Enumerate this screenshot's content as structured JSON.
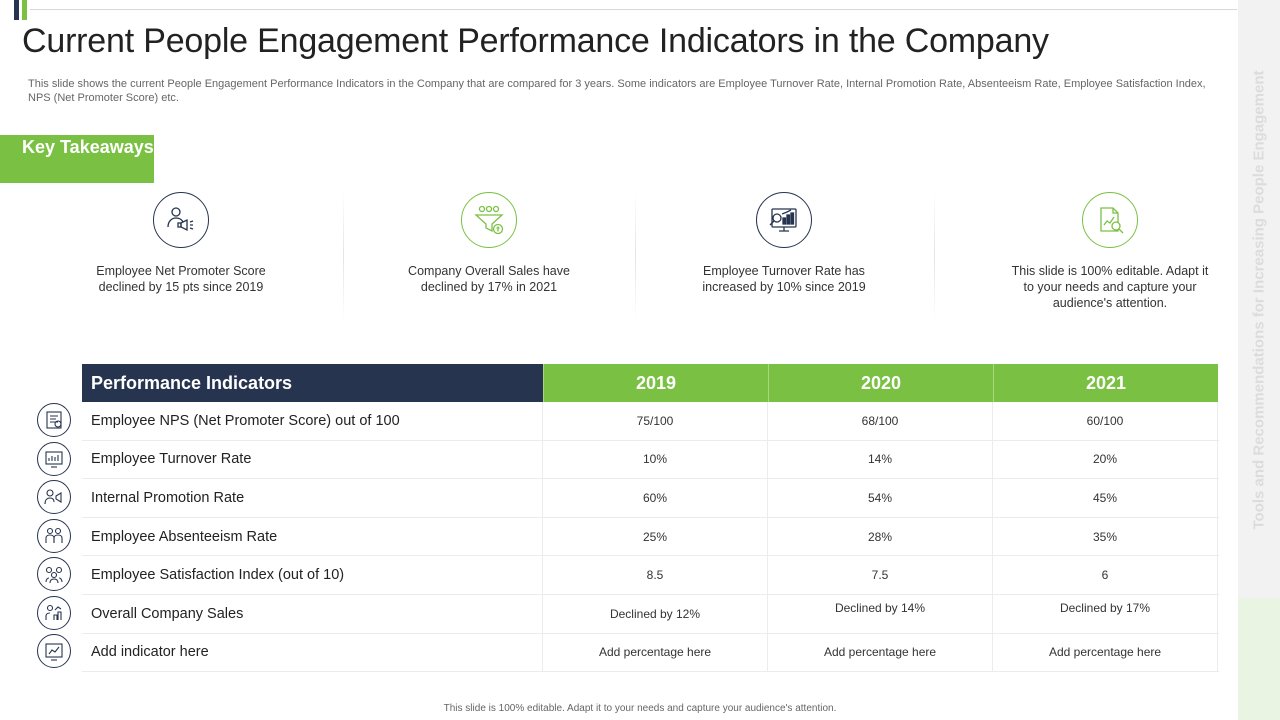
{
  "title": "Current People Engagement Performance Indicators in the Company",
  "subtitle": "This slide shows the current People Engagement Performance Indicators in the Company that are compared for 3 years. Some indicators are Employee Turnover Rate, Internal Promotion Rate, Absenteeism Rate, Employee Satisfaction Index, NPS (Net Promoter Score) etc.",
  "key_takeaways_label": "Key Takeaways",
  "side_label": "Tools and Recommendations for Increasing People Engagement",
  "takeaways": [
    {
      "icon": "user-megaphone-icon",
      "text": "Employee Net Promoter Score declined by 15 pts since 2019"
    },
    {
      "icon": "funnel-money-icon",
      "text": "Company Overall Sales have declined by 17% in 2021"
    },
    {
      "icon": "chart-magnifier-icon",
      "text": "Employee Turnover Rate has increased by 10% since 2019"
    },
    {
      "icon": "document-search-icon",
      "text": "This slide is 100% editable. Adapt it to your needs and capture your audience's attention."
    }
  ],
  "table": {
    "header": [
      "Performance Indicators",
      "2019",
      "2020",
      "2021"
    ],
    "rows": [
      {
        "icon": "nps-icon",
        "name": "Employee NPS (Net Promoter Score) out of 100",
        "values": [
          "75/100",
          "68/100",
          "60/100"
        ]
      },
      {
        "icon": "turnover-icon",
        "name": "Employee Turnover Rate",
        "values": [
          "10%",
          "14%",
          "20%"
        ]
      },
      {
        "icon": "promotion-icon",
        "name": "Internal Promotion Rate",
        "values": [
          "60%",
          "54%",
          "45%"
        ]
      },
      {
        "icon": "absenteeism-icon",
        "name": "Employee Absenteeism Rate",
        "values": [
          "25%",
          "28%",
          "35%"
        ]
      },
      {
        "icon": "satisfaction-icon",
        "name": "Employee Satisfaction Index (out of 10)",
        "values": [
          "8.5",
          "7.5",
          "6"
        ]
      },
      {
        "icon": "sales-icon",
        "name": "Overall Company Sales",
        "values": [
          "Declined by 12%",
          "Declined by 14%",
          "Declined by 17%"
        ]
      },
      {
        "icon": "add-indicator-icon",
        "name": "Add indicator here",
        "values": [
          "Add percentage here",
          "Add percentage here",
          "Add percentage here"
        ]
      }
    ]
  },
  "footer": "This slide is 100% editable. Adapt it to your needs and capture your audience's attention.",
  "colors": {
    "navy": "#26344f",
    "green": "#7ac143"
  }
}
